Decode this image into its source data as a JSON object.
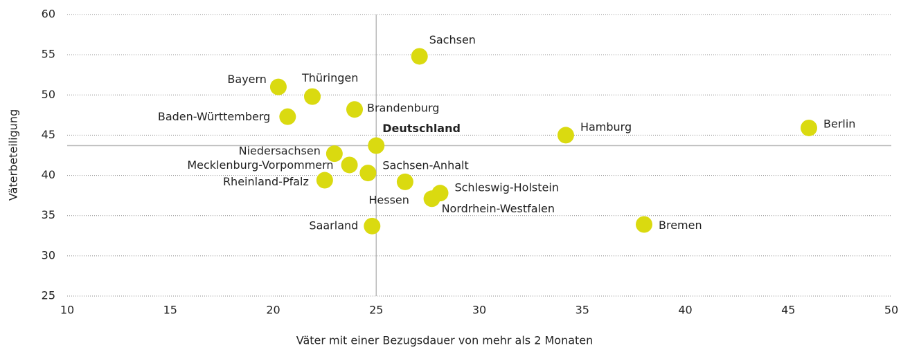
{
  "chart_data": {
    "type": "scatter",
    "xlabel": "Väter mit einer Bezugsdauer von mehr als 2 Monaten",
    "ylabel": "Väterbeteiligung",
    "color": "#dada10",
    "labels": [
      "Sachsen",
      "Bayern",
      "Thüringen",
      "Brandenburg",
      "Baden-Württemberg",
      "Deutschland",
      "Hamburg",
      "Berlin",
      "Niedersachsen",
      "Mecklenburg-Vorpommern",
      "Sachsen-Anhalt",
      "Rheinland-Pfalz",
      "Hessen",
      "Schleswig-Holstein",
      "Nordrhein-Westfalen",
      "Saarland",
      "Bremen"
    ],
    "x": [
      27.1,
      20.25,
      21.9,
      23.95,
      20.7,
      25.0,
      34.2,
      46.0,
      22.97,
      23.7,
      24.6,
      22.5,
      26.4,
      28.1,
      27.7,
      24.8,
      38.0
    ],
    "y": [
      54.8,
      51.0,
      49.8,
      48.2,
      47.3,
      43.7,
      45.0,
      45.9,
      42.7,
      41.3,
      40.3,
      39.4,
      39.2,
      37.8,
      37.1,
      33.7,
      33.9
    ],
    "xlim": [
      10,
      50
    ],
    "xticks": [
      10,
      15,
      20,
      25,
      30,
      35,
      40,
      45,
      50
    ],
    "ylim": [
      25,
      60
    ],
    "yticks": [
      25,
      30,
      35,
      40,
      45,
      50,
      55,
      60
    ],
    "grid": true
  }
}
